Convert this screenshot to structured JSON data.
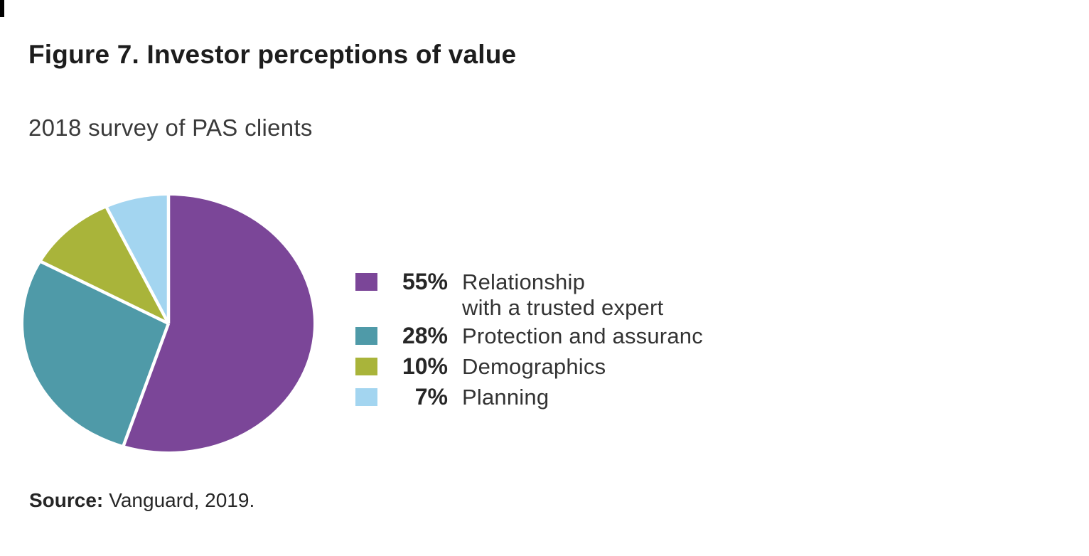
{
  "chart_data": {
    "type": "pie",
    "title": "Figure 7. Investor perceptions of value",
    "subtitle": "2018 survey of PAS clients",
    "start_angle_deg": 0,
    "direction": "clockwise",
    "legend_position": "right",
    "separator_color": "#ffffff",
    "shape": "ellipse",
    "slices": [
      {
        "pct": 55,
        "pct_label": "55%",
        "label": "Relationship\nwith a trusted expert",
        "color": "#7b4698"
      },
      {
        "pct": 28,
        "pct_label": "28%",
        "label": "Protection and assuranc",
        "color": "#4f9aa8"
      },
      {
        "pct": 10,
        "pct_label": "10%",
        "label": "Demographics",
        "color": "#a9b43a"
      },
      {
        "pct": 7,
        "pct_label": "7%",
        "label": "Planning",
        "color": "#a3d5f0"
      }
    ],
    "source_label": "Source:",
    "source_value": "Vanguard, 2019."
  }
}
